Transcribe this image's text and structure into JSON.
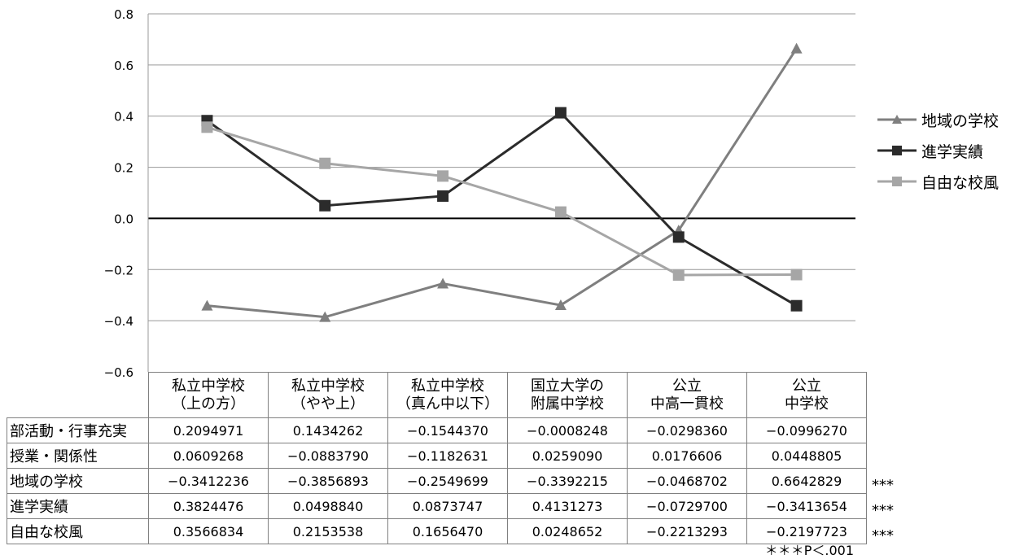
{
  "chart_data": {
    "type": "line",
    "ylim": [
      -0.6,
      0.8
    ],
    "yticks": [
      "0.8",
      "0.6",
      "0.4",
      "0.2",
      "0.0",
      "−0.2",
      "−0.4",
      "−0.6"
    ],
    "grid": true,
    "legend_position": "right",
    "categories": [
      [
        "私立中学校",
        "（上の方）"
      ],
      [
        "私立中学校",
        "（やや上）"
      ],
      [
        "私立中学校",
        "（真ん中以下）"
      ],
      [
        "国立大学の",
        "附属中学校"
      ],
      [
        "公立",
        "中高一貫校"
      ],
      [
        "公立",
        "中学校"
      ]
    ],
    "series": [
      {
        "name": "地域の学校",
        "color": "#7f7f7f",
        "marker": "triangle",
        "values": [
          -0.3412236,
          -0.3856893,
          -0.2549699,
          -0.3392215,
          -0.0468702,
          0.6642829
        ]
      },
      {
        "name": "進学実績",
        "color": "#2b2b2b",
        "marker": "square",
        "values": [
          0.3824476,
          0.049884,
          0.0873747,
          0.4131273,
          -0.07297,
          -0.3413654
        ]
      },
      {
        "name": "自由な校風",
        "color": "#a6a6a6",
        "marker": "square",
        "values": [
          0.3566834,
          0.2153538,
          0.165647,
          0.0248652,
          -0.2213293,
          -0.2197723
        ]
      }
    ],
    "table": {
      "rows": [
        {
          "label": "部活動・行事充実",
          "values": [
            "0.2094971",
            "0.1434262",
            "−0.1544370",
            "−0.0008248",
            "−0.0298360",
            "−0.0996270"
          ],
          "mark": ""
        },
        {
          "label": "授業・関係性",
          "values": [
            "0.0609268",
            "−0.0883790",
            "−0.1182631",
            "0.0259090",
            "0.0176606",
            "0.0448805"
          ],
          "mark": ""
        },
        {
          "label": "地域の学校",
          "values": [
            "−0.3412236",
            "−0.3856893",
            "−0.2549699",
            "−0.3392215",
            "−0.0468702",
            "0.6642829"
          ],
          "mark": "***"
        },
        {
          "label": "進学実績",
          "values": [
            "0.3824476",
            "0.0498840",
            "0.0873747",
            "0.4131273",
            "−0.0729700",
            "−0.3413654"
          ],
          "mark": "***"
        },
        {
          "label": "自由な校風",
          "values": [
            "0.3566834",
            "0.2153538",
            "0.1656470",
            "0.0248652",
            "−0.2213293",
            "−0.2197723"
          ],
          "mark": "***"
        }
      ]
    },
    "note": "＊＊＊P＜.001"
  }
}
